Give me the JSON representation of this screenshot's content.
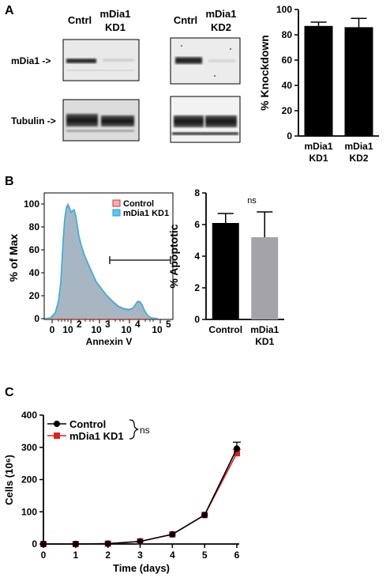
{
  "panels": {
    "a": "A",
    "b": "B",
    "c": "C"
  },
  "western": {
    "left": {
      "col1": "Cntrl",
      "col2_line1": "mDia1",
      "col2_line2": "KD1"
    },
    "right": {
      "col1": "Cntrl",
      "col2_line1": "mDia1",
      "col2_line2": "KD2"
    },
    "row1_label": "mDia1 ->",
    "row2_label": "Tubulin ->"
  },
  "flow": {
    "ylabel": "% of Max",
    "xlabel": "Annexin V",
    "y_ticks": [
      "0",
      "20",
      "40",
      "60",
      "80",
      "100"
    ],
    "x_ticks": [
      {
        "base": "0",
        "exp": ""
      },
      {
        "base": "10",
        "exp": "2"
      },
      {
        "base": "10",
        "exp": "3"
      },
      {
        "base": "10",
        "exp": "4"
      },
      {
        "base": "10",
        "exp": "5"
      }
    ],
    "legend": [
      "Control",
      "mDia1 KD1"
    ],
    "colors": {
      "control": "#f08080",
      "kd1": "#33b8e6",
      "fill": "#9fb3c4"
    }
  },
  "chart_data": [
    {
      "type": "bar",
      "panel": "A",
      "categories": [
        [
          "mDia1",
          "KD1"
        ],
        [
          "mDia1",
          "KD2"
        ]
      ],
      "values": [
        87,
        86
      ],
      "errors": [
        3,
        7
      ],
      "ylabel": "% Knockdown",
      "ylim": [
        0,
        100
      ],
      "y_ticks": [
        0,
        20,
        40,
        60,
        80,
        100
      ],
      "color": "#000000"
    },
    {
      "type": "bar",
      "panel": "B",
      "categories": [
        [
          "Control"
        ],
        [
          "mDia1",
          "KD1"
        ]
      ],
      "values": [
        6.1,
        5.2
      ],
      "errors": [
        0.6,
        1.6
      ],
      "ylabel": "% Apoptotic",
      "ylim": [
        0,
        8
      ],
      "y_ticks": [
        0,
        2,
        4,
        6,
        8
      ],
      "annotation": "ns",
      "colors": [
        "#000000",
        "#a4a4a8"
      ]
    },
    {
      "type": "line",
      "panel": "C",
      "x": [
        0,
        1,
        2,
        3,
        4,
        5,
        6
      ],
      "series": [
        {
          "name": "Control",
          "values": [
            0,
            0,
            1,
            8,
            30,
            90,
            296
          ],
          "errors": [
            0,
            0,
            0,
            0,
            0,
            0,
            20
          ],
          "color": "#000000",
          "marker": "circle"
        },
        {
          "name": "mDia1 KD1",
          "values": [
            0,
            0,
            1,
            8,
            30,
            90,
            282
          ],
          "errors": [
            0,
            0,
            0,
            0,
            0,
            0,
            12
          ],
          "color": "#e02020",
          "marker": "square"
        }
      ],
      "xlabel": "Time (days)",
      "ylabel": "Cells (10⁶)",
      "xlim": [
        0,
        6
      ],
      "ylim": [
        0,
        400
      ],
      "x_ticks": [
        0,
        1,
        2,
        3,
        4,
        5,
        6
      ],
      "y_ticks": [
        0,
        100,
        200,
        300,
        400
      ],
      "annotation": "ns"
    }
  ]
}
